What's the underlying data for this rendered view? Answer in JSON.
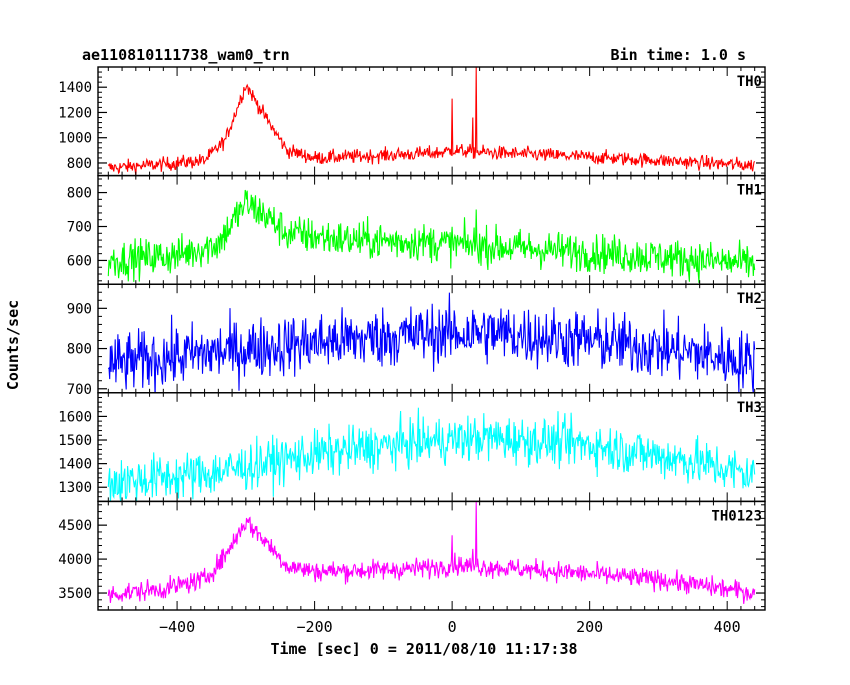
{
  "chart_data": {
    "type": "line",
    "title": "ae110810111738_wam0_trn",
    "subtitle": "Bin time: 1.0 s",
    "xlabel": "Time [sec] 0 = 2011/08/10 11:17:38",
    "ylabel": "Counts/sec",
    "xlim": [
      -515,
      455
    ],
    "xticks": [
      -400,
      -200,
      0,
      200,
      400
    ],
    "xtick_labels": [
      "−400",
      "−200",
      "0",
      "200",
      "400"
    ],
    "panels": [
      {
        "name": "TH0",
        "color": "#ff0000",
        "ylim": [
          700,
          1560
        ],
        "yticks": [
          800,
          1000,
          1200,
          1400
        ],
        "t_range": [
          -500,
          440
        ],
        "baseline": [
          [
            -500,
            760
          ],
          [
            -420,
            790
          ],
          [
            -360,
            820
          ],
          [
            -330,
            980
          ],
          [
            -300,
            1420
          ],
          [
            -270,
            1150
          ],
          [
            -240,
            900
          ],
          [
            -200,
            840
          ],
          [
            -100,
            860
          ],
          [
            -20,
            880
          ],
          [
            0,
            900
          ],
          [
            60,
            880
          ],
          [
            150,
            860
          ],
          [
            300,
            820
          ],
          [
            440,
            780
          ]
        ],
        "noise": 28,
        "spikes": [
          [
            0,
            1310
          ],
          [
            30,
            1160
          ],
          [
            35,
            1560
          ]
        ]
      },
      {
        "name": "TH1",
        "color": "#00ff00",
        "ylim": [
          530,
          850
        ],
        "yticks": [
          600,
          700,
          800
        ],
        "t_range": [
          -500,
          440
        ],
        "baseline": [
          [
            -500,
            600
          ],
          [
            -400,
            615
          ],
          [
            -340,
            650
          ],
          [
            -300,
            770
          ],
          [
            -270,
            730
          ],
          [
            -240,
            680
          ],
          [
            -150,
            660
          ],
          [
            -50,
            655
          ],
          [
            30,
            645
          ],
          [
            150,
            630
          ],
          [
            300,
            610
          ],
          [
            440,
            590
          ]
        ],
        "noise": 28,
        "spikes": [
          [
            35,
            750
          ]
        ]
      },
      {
        "name": "TH2",
        "color": "#0000ff",
        "ylim": [
          690,
          960
        ],
        "yticks": [
          700,
          800,
          900
        ],
        "t_range": [
          -500,
          440
        ],
        "baseline": [
          [
            -500,
            760
          ],
          [
            -350,
            790
          ],
          [
            -200,
            815
          ],
          [
            -50,
            835
          ],
          [
            50,
            840
          ],
          [
            200,
            820
          ],
          [
            350,
            790
          ],
          [
            440,
            765
          ]
        ],
        "noise": 38,
        "spikes": []
      },
      {
        "name": "TH3",
        "color": "#00ffff",
        "ylim": [
          1240,
          1700
        ],
        "yticks": [
          1300,
          1400,
          1500,
          1600
        ],
        "t_range": [
          -500,
          440
        ],
        "baseline": [
          [
            -500,
            1320
          ],
          [
            -350,
            1360
          ],
          [
            -200,
            1440
          ],
          [
            -50,
            1490
          ],
          [
            50,
            1510
          ],
          [
            200,
            1480
          ],
          [
            350,
            1410
          ],
          [
            440,
            1350
          ]
        ],
        "noise": 50,
        "spikes": []
      },
      {
        "name": "TH0123",
        "color": "#ff00ff",
        "ylim": [
          3250,
          4850
        ],
        "yticks": [
          3500,
          4000,
          4500
        ],
        "t_range": [
          -500,
          440
        ],
        "baseline": [
          [
            -500,
            3480
          ],
          [
            -420,
            3560
          ],
          [
            -360,
            3700
          ],
          [
            -330,
            4050
          ],
          [
            -300,
            4560
          ],
          [
            -270,
            4250
          ],
          [
            -240,
            3900
          ],
          [
            -200,
            3820
          ],
          [
            -100,
            3840
          ],
          [
            -20,
            3880
          ],
          [
            0,
            3920
          ],
          [
            60,
            3880
          ],
          [
            150,
            3820
          ],
          [
            300,
            3700
          ],
          [
            440,
            3500
          ]
        ],
        "noise": 75,
        "spikes": [
          [
            0,
            4350
          ],
          [
            30,
            4150
          ],
          [
            35,
            4850
          ]
        ]
      }
    ]
  }
}
